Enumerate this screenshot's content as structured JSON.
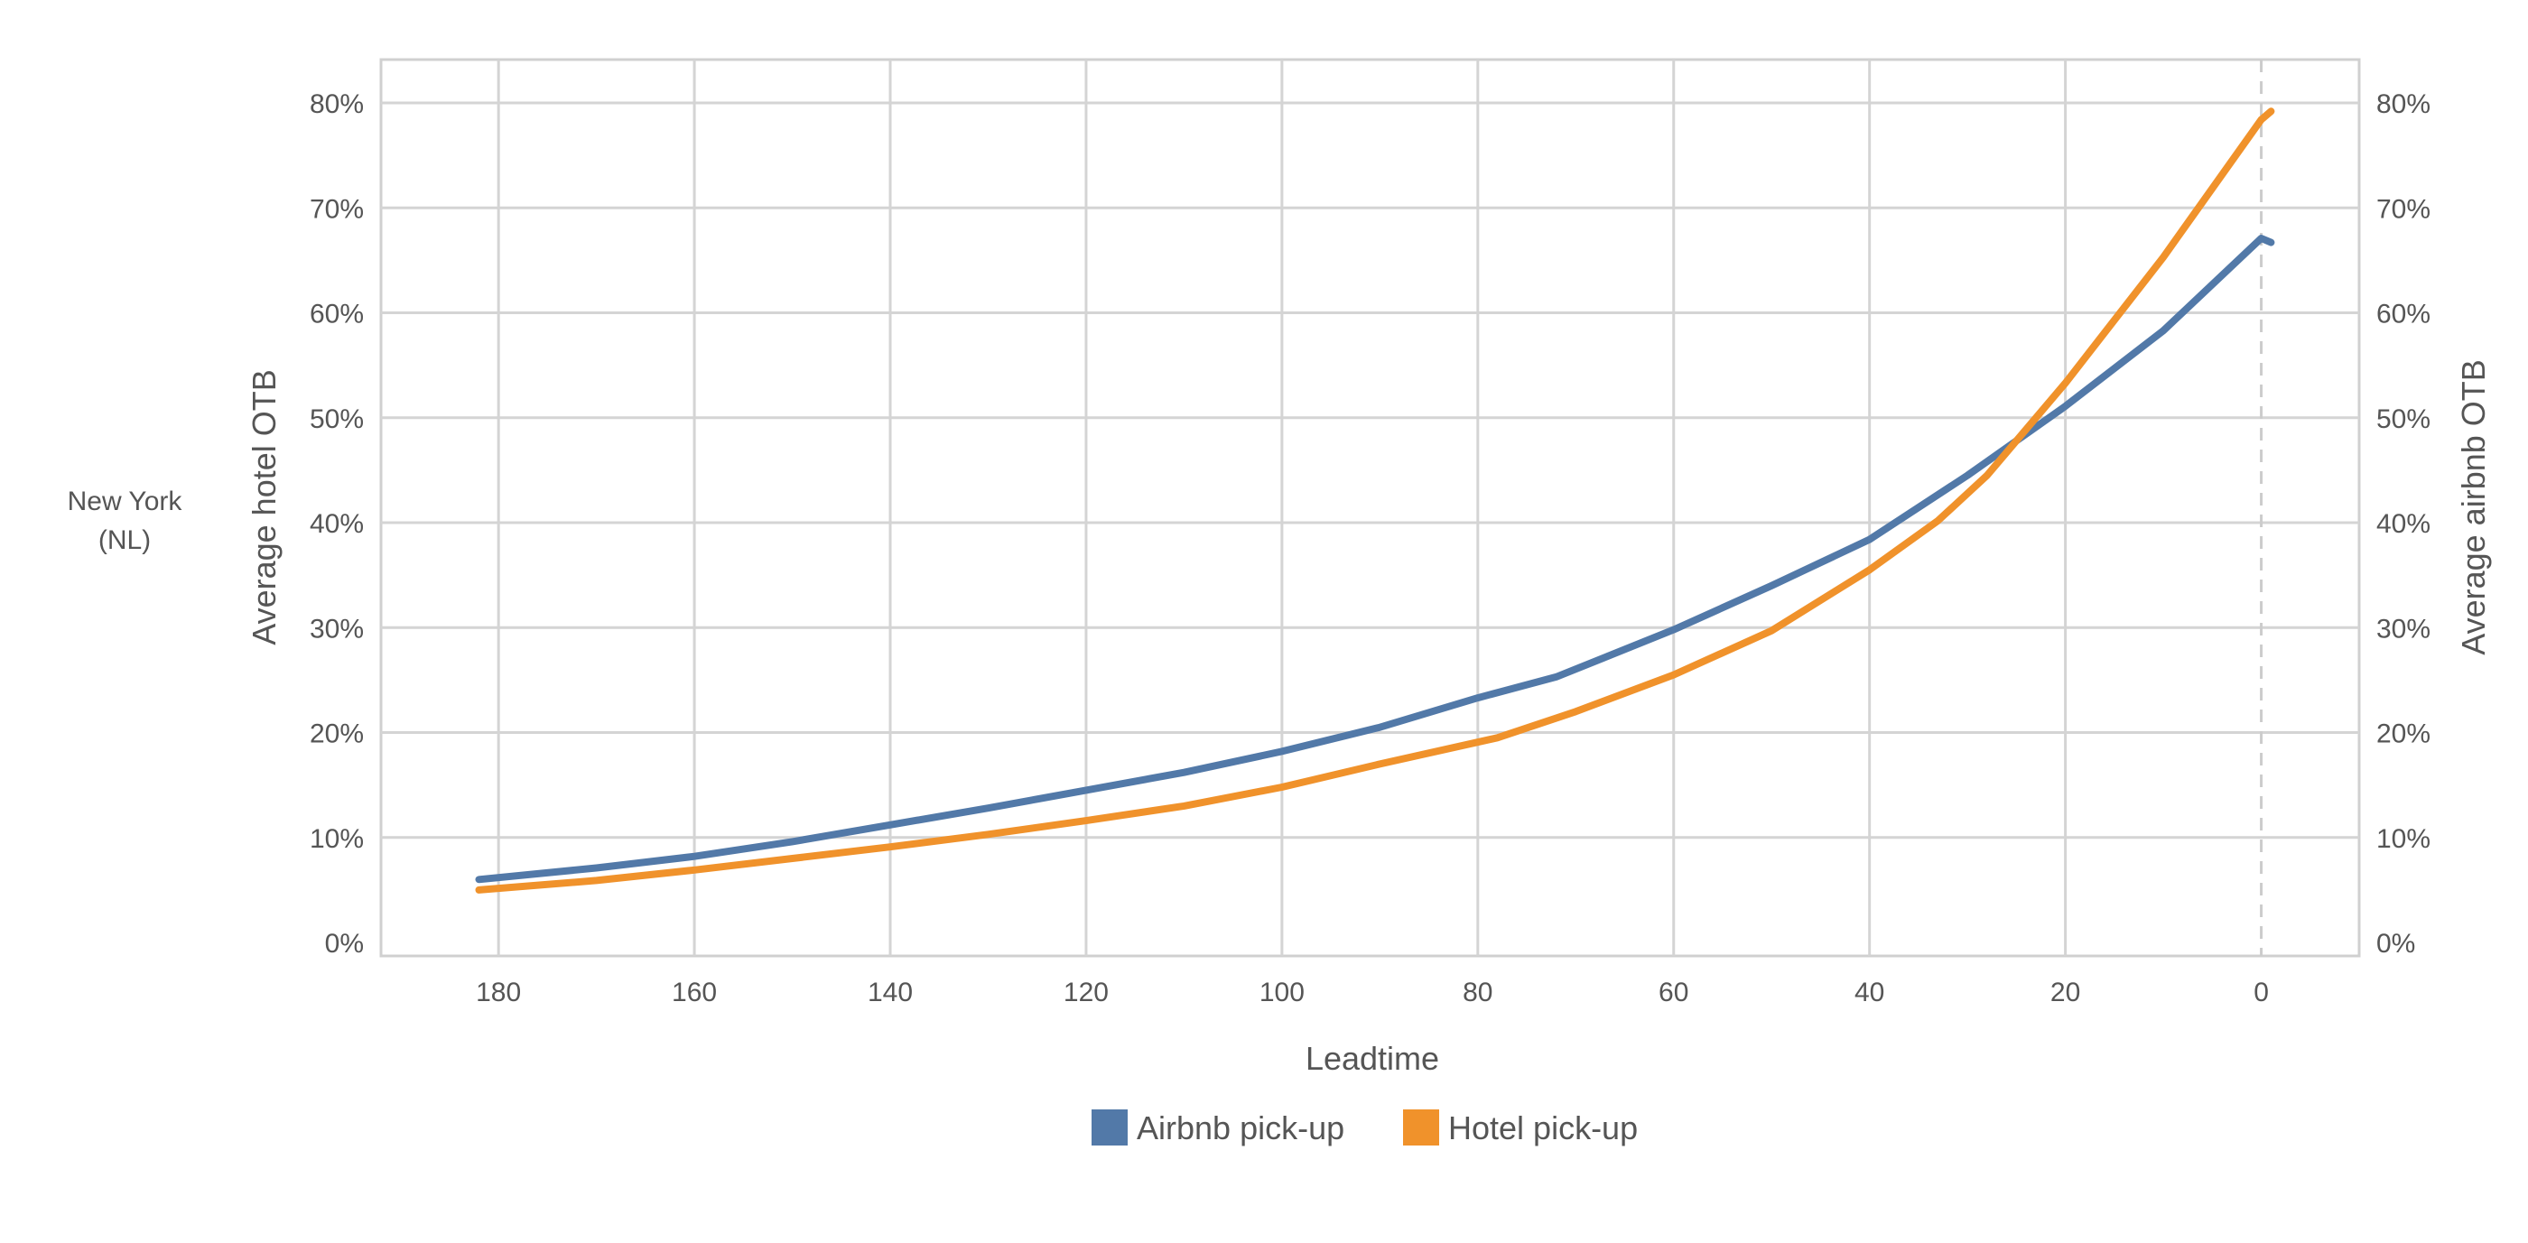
{
  "chart_data": {
    "type": "line",
    "row_label": [
      "New York",
      "(NL)"
    ],
    "xlabel": "Leadtime",
    "ylabel_left": "Average hotel OTB",
    "ylabel_right": "Average airbnb OTB",
    "xlim": [
      192,
      -10
    ],
    "x_reversed": true,
    "xticks": [
      180,
      160,
      140,
      120,
      100,
      80,
      60,
      40,
      20,
      0
    ],
    "ylim": [
      0,
      0.84
    ],
    "yticks": [
      0,
      0.1,
      0.2,
      0.3,
      0.4,
      0.5,
      0.6,
      0.7,
      0.8
    ],
    "ytick_labels": [
      "0%",
      "10%",
      "20%",
      "30%",
      "40%",
      "50%",
      "60%",
      "70%",
      "80%"
    ],
    "grid": true,
    "reference_line_x": 0,
    "legend_position": "bottom",
    "series": [
      {
        "name": "Airbnb pick-up",
        "color": "#5279a8",
        "points": [
          [
            182,
            0.06
          ],
          [
            170,
            0.071
          ],
          [
            160,
            0.082
          ],
          [
            150,
            0.096
          ],
          [
            140,
            0.112
          ],
          [
            130,
            0.128
          ],
          [
            120,
            0.145
          ],
          [
            110,
            0.162
          ],
          [
            100,
            0.182
          ],
          [
            90,
            0.205
          ],
          [
            80,
            0.233
          ],
          [
            72,
            0.253
          ],
          [
            60,
            0.298
          ],
          [
            50,
            0.34
          ],
          [
            40,
            0.384
          ],
          [
            30,
            0.445
          ],
          [
            20,
            0.511
          ],
          [
            10,
            0.583
          ],
          [
            0,
            0.671
          ],
          [
            -1,
            0.667
          ]
        ]
      },
      {
        "name": "Hotel pick-up",
        "color": "#f0922b",
        "points": [
          [
            182,
            0.05
          ],
          [
            170,
            0.059
          ],
          [
            160,
            0.069
          ],
          [
            150,
            0.08
          ],
          [
            140,
            0.091
          ],
          [
            130,
            0.103
          ],
          [
            120,
            0.116
          ],
          [
            110,
            0.13
          ],
          [
            100,
            0.148
          ],
          [
            90,
            0.17
          ],
          [
            78,
            0.195
          ],
          [
            70,
            0.22
          ],
          [
            60,
            0.255
          ],
          [
            50,
            0.297
          ],
          [
            40,
            0.355
          ],
          [
            33,
            0.402
          ],
          [
            28,
            0.445
          ],
          [
            20,
            0.533
          ],
          [
            10,
            0.653
          ],
          [
            0,
            0.784
          ],
          [
            -1,
            0.792
          ]
        ]
      }
    ]
  }
}
